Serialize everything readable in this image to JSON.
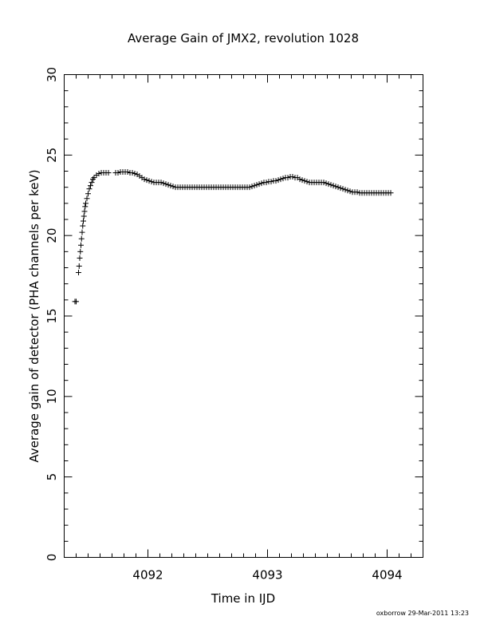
{
  "chart_data": {
    "type": "scatter",
    "title": "Average Gain of JMX2, revolution 1028",
    "xlabel": "Time in IJD",
    "ylabel": "Average gain of detector (PHA channels per keV)",
    "xlim": [
      4091.3,
      4094.3
    ],
    "ylim": [
      0,
      30
    ],
    "x_ticks": [
      4092,
      4093,
      4094
    ],
    "x_tick_labels": [
      "4092",
      "4093",
      "4094"
    ],
    "y_ticks": [
      0,
      5,
      10,
      15,
      20,
      25,
      30
    ],
    "y_tick_labels": [
      "0",
      "5",
      "10",
      "15",
      "20",
      "25",
      "30"
    ],
    "marker": "plus",
    "grid": false,
    "series": [
      {
        "points": [
          [
            4091.39,
            15.9
          ],
          [
            4091.4,
            15.9
          ],
          [
            4091.42,
            17.7
          ],
          [
            4091.425,
            18.1
          ],
          [
            4091.43,
            18.6
          ],
          [
            4091.435,
            19.0
          ],
          [
            4091.44,
            19.4
          ],
          [
            4091.445,
            19.8
          ],
          [
            4091.45,
            20.2
          ],
          [
            4091.455,
            20.6
          ],
          [
            4091.46,
            20.9
          ],
          [
            4091.465,
            21.2
          ],
          [
            4091.47,
            21.5
          ],
          [
            4091.475,
            21.8
          ],
          [
            4091.48,
            22.0
          ],
          [
            4091.49,
            22.3
          ],
          [
            4091.5,
            22.6
          ],
          [
            4091.51,
            22.9
          ],
          [
            4091.52,
            23.1
          ],
          [
            4091.53,
            23.3
          ],
          [
            4091.54,
            23.5
          ],
          [
            4091.55,
            23.6
          ],
          [
            4091.57,
            23.75
          ],
          [
            4091.59,
            23.85
          ],
          [
            4091.61,
            23.9
          ],
          [
            4091.63,
            23.9
          ],
          [
            4091.65,
            23.9
          ],
          [
            4091.67,
            23.9
          ],
          [
            4091.73,
            23.9
          ],
          [
            4091.75,
            23.9
          ],
          [
            4091.77,
            23.95
          ],
          [
            4091.79,
            23.95
          ],
          [
            4091.81,
            23.95
          ],
          [
            4091.83,
            23.95
          ],
          [
            4091.85,
            23.9
          ],
          [
            4091.87,
            23.9
          ],
          [
            4091.89,
            23.85
          ],
          [
            4091.91,
            23.8
          ],
          [
            4091.93,
            23.7
          ],
          [
            4091.95,
            23.6
          ],
          [
            4091.97,
            23.5
          ],
          [
            4091.99,
            23.45
          ],
          [
            4092.01,
            23.4
          ],
          [
            4092.03,
            23.35
          ],
          [
            4092.05,
            23.3
          ],
          [
            4092.07,
            23.3
          ],
          [
            4092.09,
            23.3
          ],
          [
            4092.11,
            23.3
          ],
          [
            4092.13,
            23.25
          ],
          [
            4092.15,
            23.2
          ],
          [
            4092.17,
            23.15
          ],
          [
            4092.19,
            23.1
          ],
          [
            4092.21,
            23.05
          ],
          [
            4092.23,
            23.0
          ],
          [
            4092.25,
            23.0
          ],
          [
            4092.27,
            23.0
          ],
          [
            4092.29,
            23.0
          ],
          [
            4092.31,
            23.0
          ],
          [
            4092.33,
            23.0
          ],
          [
            4092.35,
            23.0
          ],
          [
            4092.37,
            23.0
          ],
          [
            4092.39,
            23.0
          ],
          [
            4092.41,
            23.0
          ],
          [
            4092.43,
            23.0
          ],
          [
            4092.45,
            23.0
          ],
          [
            4092.47,
            23.0
          ],
          [
            4092.49,
            23.0
          ],
          [
            4092.51,
            23.0
          ],
          [
            4092.53,
            23.0
          ],
          [
            4092.55,
            23.0
          ],
          [
            4092.57,
            23.0
          ],
          [
            4092.59,
            23.0
          ],
          [
            4092.61,
            23.0
          ],
          [
            4092.63,
            23.0
          ],
          [
            4092.65,
            23.0
          ],
          [
            4092.67,
            23.0
          ],
          [
            4092.69,
            23.0
          ],
          [
            4092.71,
            23.0
          ],
          [
            4092.73,
            23.0
          ],
          [
            4092.75,
            23.0
          ],
          [
            4092.77,
            23.0
          ],
          [
            4092.79,
            23.0
          ],
          [
            4092.81,
            23.0
          ],
          [
            4092.83,
            23.0
          ],
          [
            4092.85,
            23.0
          ],
          [
            4092.87,
            23.05
          ],
          [
            4092.89,
            23.1
          ],
          [
            4092.91,
            23.15
          ],
          [
            4092.93,
            23.2
          ],
          [
            4092.95,
            23.25
          ],
          [
            4092.97,
            23.3
          ],
          [
            4092.99,
            23.3
          ],
          [
            4093.01,
            23.35
          ],
          [
            4093.03,
            23.35
          ],
          [
            4093.05,
            23.4
          ],
          [
            4093.07,
            23.4
          ],
          [
            4093.09,
            23.45
          ],
          [
            4093.11,
            23.5
          ],
          [
            4093.13,
            23.55
          ],
          [
            4093.15,
            23.6
          ],
          [
            4093.17,
            23.6
          ],
          [
            4093.19,
            23.65
          ],
          [
            4093.21,
            23.65
          ],
          [
            4093.23,
            23.6
          ],
          [
            4093.25,
            23.6
          ],
          [
            4093.27,
            23.5
          ],
          [
            4093.29,
            23.45
          ],
          [
            4093.31,
            23.4
          ],
          [
            4093.33,
            23.35
          ],
          [
            4093.35,
            23.3
          ],
          [
            4093.37,
            23.3
          ],
          [
            4093.39,
            23.3
          ],
          [
            4093.41,
            23.3
          ],
          [
            4093.43,
            23.3
          ],
          [
            4093.45,
            23.3
          ],
          [
            4093.47,
            23.3
          ],
          [
            4093.49,
            23.25
          ],
          [
            4093.51,
            23.2
          ],
          [
            4093.53,
            23.15
          ],
          [
            4093.55,
            23.1
          ],
          [
            4093.57,
            23.05
          ],
          [
            4093.59,
            23.0
          ],
          [
            4093.61,
            22.95
          ],
          [
            4093.63,
            22.9
          ],
          [
            4093.65,
            22.85
          ],
          [
            4093.67,
            22.8
          ],
          [
            4093.69,
            22.75
          ],
          [
            4093.71,
            22.7
          ],
          [
            4093.73,
            22.7
          ],
          [
            4093.75,
            22.7
          ],
          [
            4093.77,
            22.65
          ],
          [
            4093.79,
            22.65
          ],
          [
            4093.81,
            22.65
          ],
          [
            4093.83,
            22.65
          ],
          [
            4093.85,
            22.65
          ],
          [
            4093.87,
            22.65
          ],
          [
            4093.89,
            22.65
          ],
          [
            4093.91,
            22.65
          ],
          [
            4093.93,
            22.65
          ],
          [
            4093.95,
            22.65
          ],
          [
            4093.97,
            22.65
          ],
          [
            4093.99,
            22.65
          ],
          [
            4094.01,
            22.65
          ],
          [
            4094.03,
            22.65
          ]
        ]
      }
    ]
  },
  "footer": {
    "credit": "oxborrow 29-Mar-2011 13:23"
  }
}
